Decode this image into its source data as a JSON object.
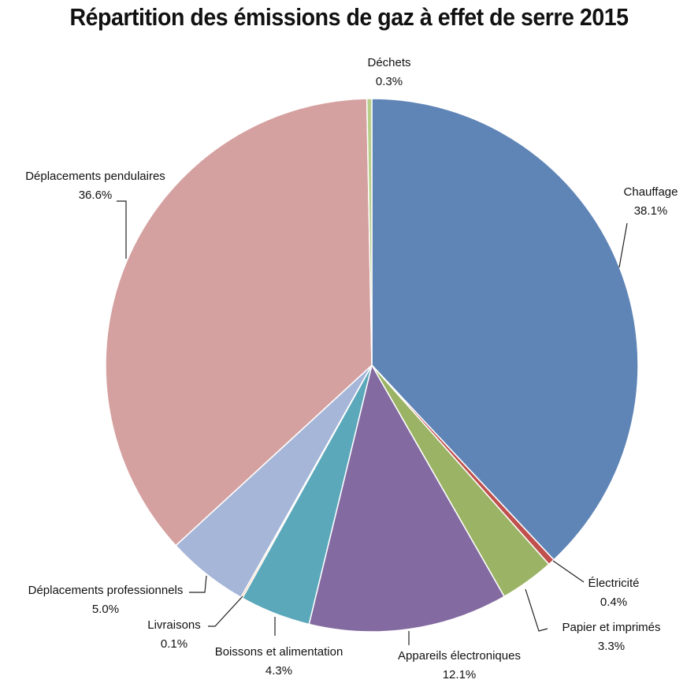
{
  "title": "Répartition des émissions de gaz à effet de serre 2015",
  "chart_data": {
    "type": "pie",
    "title": "Répartition des émissions de gaz à effet de serre 2015",
    "unit": "%",
    "slices": [
      {
        "label": "Chauffage",
        "value": 38.1,
        "display": "38.1%",
        "color": "#5f84b6"
      },
      {
        "label": "Électricité",
        "value": 0.4,
        "display": "0.4%",
        "color": "#c0504d"
      },
      {
        "label": "Papier et imprimés",
        "value": 3.3,
        "display": "3.3%",
        "color": "#9bb364"
      },
      {
        "label": "Appareils électroniques",
        "value": 12.1,
        "display": "12.1%",
        "color": "#836aa0"
      },
      {
        "label": "Boissons et alimentation",
        "value": 4.3,
        "display": "4.3%",
        "color": "#5ca8bb"
      },
      {
        "label": "Livraisons",
        "value": 0.1,
        "display": "0.1%",
        "color": "#f4a55a"
      },
      {
        "label": "Déplacements professionnels",
        "value": 5.0,
        "display": "5.0%",
        "color": "#a6b6d8"
      },
      {
        "label": "Déplacements pendulaires",
        "value": 36.6,
        "display": "36.6%",
        "color": "#d5a1a0"
      },
      {
        "label": "Déchets",
        "value": 0.3,
        "display": "0.3%",
        "color": "#b9cf8c"
      }
    ],
    "legend": "none",
    "label_position": "outside"
  }
}
